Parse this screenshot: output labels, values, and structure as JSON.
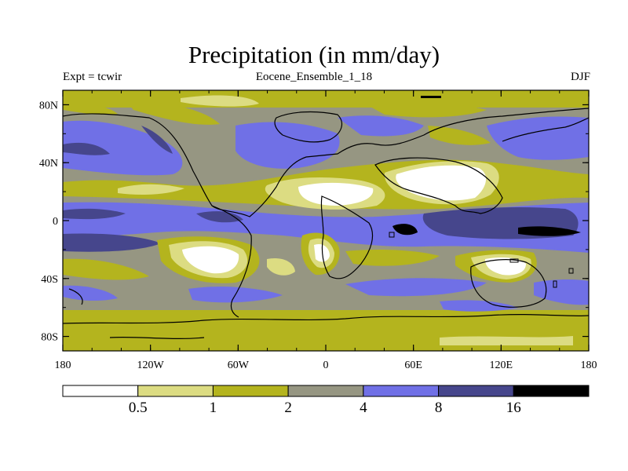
{
  "title": "Precipitation (in mm/day)",
  "subtitle_left": "Expt = tcwir",
  "subtitle_center": "Eocene_Ensemble_1_18",
  "subtitle_right": "DJF",
  "map": {
    "lon_range": [
      -180,
      180
    ],
    "lat_range": [
      -90,
      90
    ],
    "x_ticks": [
      {
        "lon": -180,
        "label": "180"
      },
      {
        "lon": -120,
        "label": "120W"
      },
      {
        "lon": -60,
        "label": "60W"
      },
      {
        "lon": 0,
        "label": "0"
      },
      {
        "lon": 60,
        "label": "60E"
      },
      {
        "lon": 120,
        "label": "120E"
      },
      {
        "lon": 180,
        "label": "180"
      }
    ],
    "y_ticks": [
      {
        "lat": 80,
        "label": "80N"
      },
      {
        "lat": 40,
        "label": "40N"
      },
      {
        "lat": 0,
        "label": "0"
      },
      {
        "lat": -40,
        "label": "40S"
      },
      {
        "lat": -80,
        "label": "80S"
      }
    ]
  },
  "colorbar": {
    "colors": [
      "#ffffff",
      "#dcdc82",
      "#b4b41e",
      "#969682",
      "#7070e6",
      "#46468c",
      "#000000"
    ],
    "labels": [
      "0.5",
      "1",
      "2",
      "4",
      "8",
      "16"
    ]
  }
}
